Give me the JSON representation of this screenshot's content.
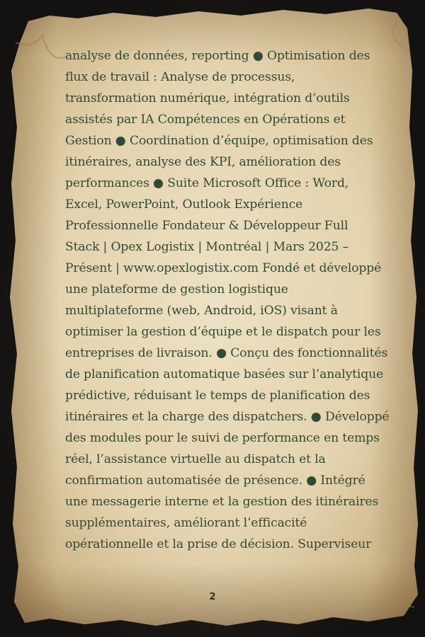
{
  "document": {
    "lines": [
      "analyse de données, reporting ● Optimisation des",
      "flux de travail : Analyse de processus,",
      "transformation numérique, intégration d’outils",
      "assistés par IA Compétences en Opérations et",
      "Gestion ● Coordination d’équipe, optimisation des",
      "itinéraires, analyse des KPI, amélioration des",
      "performances ● Suite Microsoft Office : Word,",
      "Excel, PowerPoint, Outlook Expérience",
      "Professionnelle Fondateur & Développeur Full",
      "Stack | Opex Logistix | Montréal | Mars 2025 –",
      "Présent | www.opexlogistix.com Fondé et développé",
      "une plateforme de gestion logistique",
      "multiplateforme (web, Android, iOS) visant à",
      "optimiser la gestion d’équipe et le dispatch pour les",
      "entreprises de livraison. ● Conçu des fonctionnalités",
      "de planification automatique basées sur l’analytique",
      "prédictive, réduisant le temps de planification des",
      "itinéraires et la charge des dispatchers. ● Développé",
      "des modules pour le suivi de performance en temps",
      "réel, l’assistance virtuelle au dispatch et la",
      "confirmation automatisée de présence. ● Intégré",
      "une messagerie interne et la gestion des itinéraires",
      "supplémentaires, améliorant l’efficacité",
      "opérationnelle et la prise de décision. Superviseur"
    ],
    "page_number": "2"
  },
  "colors": {
    "parchment": "#e6d7b4",
    "ink": "#2f4a35",
    "background": "#1c1a17"
  }
}
